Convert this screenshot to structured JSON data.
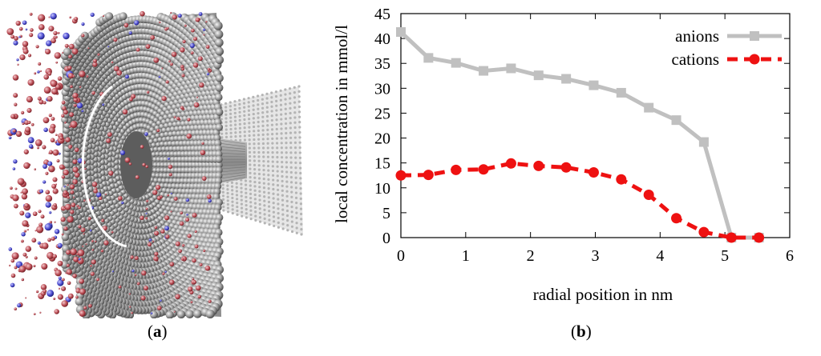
{
  "panel_a": {
    "caption_paren_open": "(",
    "caption_letter": "a",
    "caption_paren_close": ")",
    "colors": {
      "sphere": "#9a9a9a",
      "sphere_dark": "#555555",
      "anion_ion": "#b84a52",
      "cation_ion": "#4a4acd",
      "ring": "#ffffff"
    }
  },
  "panel_b": {
    "caption_paren_open": "(",
    "caption_letter": "b",
    "caption_paren_close": ")"
  },
  "chart_data": {
    "type": "line",
    "title": "",
    "xlabel": "radial position in nm",
    "ylabel": "local concentration in mmol/l",
    "xlim": [
      0,
      6
    ],
    "ylim": [
      0,
      45
    ],
    "x_ticks": [
      "0",
      "1",
      "2",
      "3",
      "4",
      "5",
      "6"
    ],
    "y_ticks": [
      "0",
      "5",
      "10",
      "15",
      "20",
      "25",
      "30",
      "35",
      "40",
      "45"
    ],
    "legend_position": "top-right",
    "series": [
      {
        "name": "anions",
        "color": "#c0c0c0",
        "marker": "square",
        "dash": "solid",
        "x": [
          0.0,
          0.425,
          0.85,
          1.275,
          1.7,
          2.125,
          2.55,
          2.975,
          3.4,
          3.825,
          4.25,
          4.675,
          5.1,
          5.525
        ],
        "y": [
          41.3,
          36.1,
          35.1,
          33.5,
          34.0,
          32.6,
          31.9,
          30.6,
          29.1,
          26.1,
          23.6,
          19.2,
          0.0,
          0.0
        ]
      },
      {
        "name": "cations",
        "color": "#ee1111",
        "marker": "circle",
        "dash": "dashed",
        "x": [
          0.0,
          0.425,
          0.85,
          1.275,
          1.7,
          2.125,
          2.55,
          2.975,
          3.4,
          3.825,
          4.25,
          4.675,
          5.1,
          5.525
        ],
        "y": [
          12.5,
          12.6,
          13.6,
          13.7,
          14.9,
          14.4,
          14.1,
          13.1,
          11.7,
          8.6,
          3.9,
          1.1,
          0.0,
          0.0
        ]
      }
    ]
  }
}
